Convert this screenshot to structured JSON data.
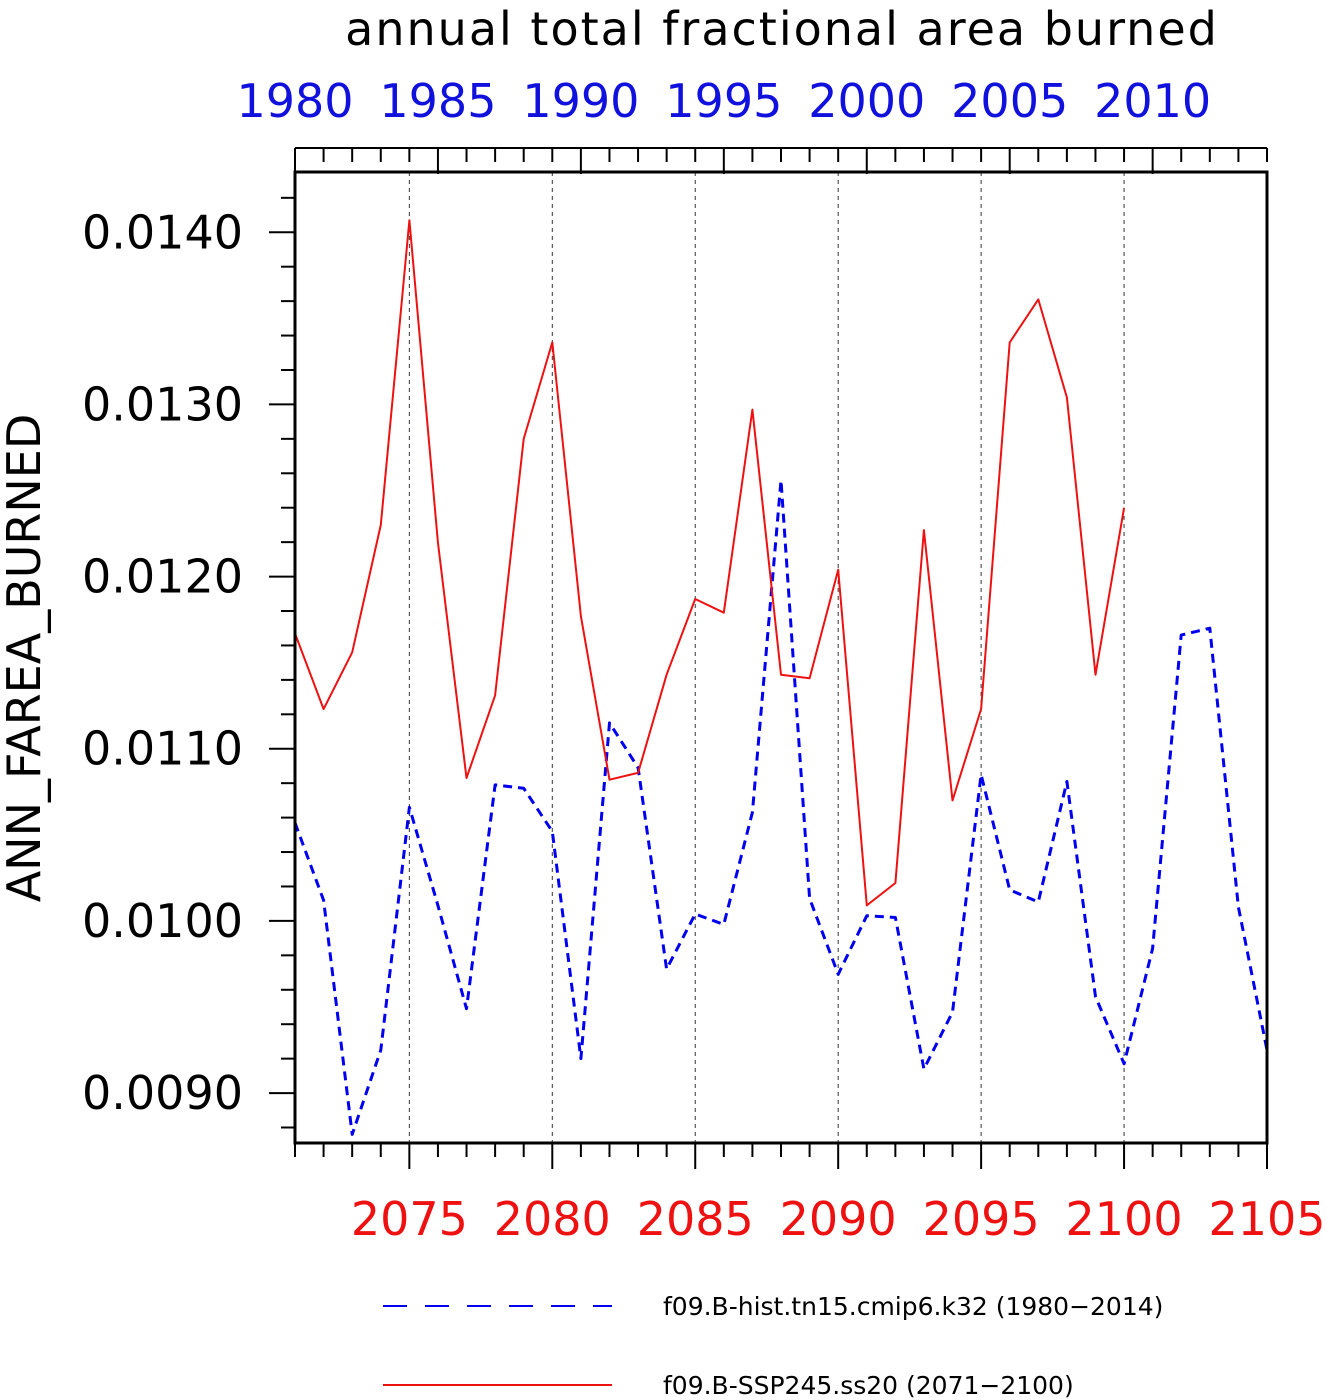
{
  "chart_data": {
    "type": "line",
    "title": "annual total fractional area burned",
    "ylabel": "ANN_FAREA_BURNED",
    "ylim": [
      0.00871,
      0.01435
    ],
    "ytick_values": [
      0.009,
      0.01,
      0.011,
      0.012,
      0.013,
      0.014
    ],
    "ytick_labels": [
      "0.0090",
      "0.0100",
      "0.0110",
      "0.0120",
      "0.0130",
      "0.0140"
    ],
    "grid": "vertical-dashed",
    "bottom_axis": {
      "xlim": [
        2071,
        2105
      ],
      "tick_values": [
        2075,
        2080,
        2085,
        2090,
        2095,
        2100,
        2105
      ],
      "tick_labels": [
        "2075",
        "2080",
        "2085",
        "2090",
        "2095",
        "2100",
        "2105"
      ],
      "color": "#ee1111"
    },
    "top_axis": {
      "xlim": [
        1980,
        2014
      ],
      "tick_values": [
        1980,
        1985,
        1990,
        1995,
        2000,
        2005,
        2010
      ],
      "tick_labels": [
        "1980",
        "1985",
        "1990",
        "1995",
        "2000",
        "2005",
        "2010"
      ],
      "color": "#1111dd"
    },
    "series": [
      {
        "name": "f09.B-hist.tn15.cmip6.k32 (1980−2014)",
        "axis": "top",
        "style": "dashed",
        "color": "#0000ee",
        "x": [
          1980,
          1981,
          1982,
          1983,
          1984,
          1985,
          1986,
          1987,
          1988,
          1989,
          1990,
          1991,
          1992,
          1993,
          1994,
          1995,
          1996,
          1997,
          1998,
          1999,
          2000,
          2001,
          2002,
          2003,
          2004,
          2005,
          2006,
          2007,
          2008,
          2009,
          2010,
          2011,
          2012,
          2013,
          2014
        ],
        "values": [
          0.01057,
          0.01012,
          0.00876,
          0.00925,
          0.01066,
          0.01009,
          0.00949,
          0.01079,
          0.01077,
          0.01052,
          0.0092,
          0.01115,
          0.01089,
          0.00972,
          0.01004,
          0.00998,
          0.01063,
          0.01256,
          0.01013,
          0.00969,
          0.01003,
          0.01002,
          0.00914,
          0.00947,
          0.01085,
          0.01018,
          0.01011,
          0.01081,
          0.00956,
          0.00917,
          0.00984,
          0.01166,
          0.0117,
          0.01008,
          0.00925
        ]
      },
      {
        "name": "f09.B-SSP245.ss20 (2071−2100)",
        "axis": "bottom",
        "style": "solid",
        "color": "#ee1111",
        "x": [
          2071,
          2072,
          2073,
          2074,
          2075,
          2076,
          2077,
          2078,
          2079,
          2080,
          2081,
          2082,
          2083,
          2084,
          2085,
          2086,
          2087,
          2088,
          2089,
          2090,
          2091,
          2092,
          2093,
          2094,
          2095,
          2096,
          2097,
          2098,
          2099,
          2100
        ],
        "values": [
          0.01167,
          0.01123,
          0.01156,
          0.0123,
          0.01407,
          0.0122,
          0.01083,
          0.01131,
          0.0128,
          0.01336,
          0.01177,
          0.01082,
          0.01086,
          0.01143,
          0.01187,
          0.01179,
          0.01297,
          0.01143,
          0.01141,
          0.01204,
          0.01009,
          0.01022,
          0.01227,
          0.0107,
          0.01123,
          0.01336,
          0.01361,
          0.01304,
          0.01143,
          0.0124
        ]
      }
    ]
  }
}
